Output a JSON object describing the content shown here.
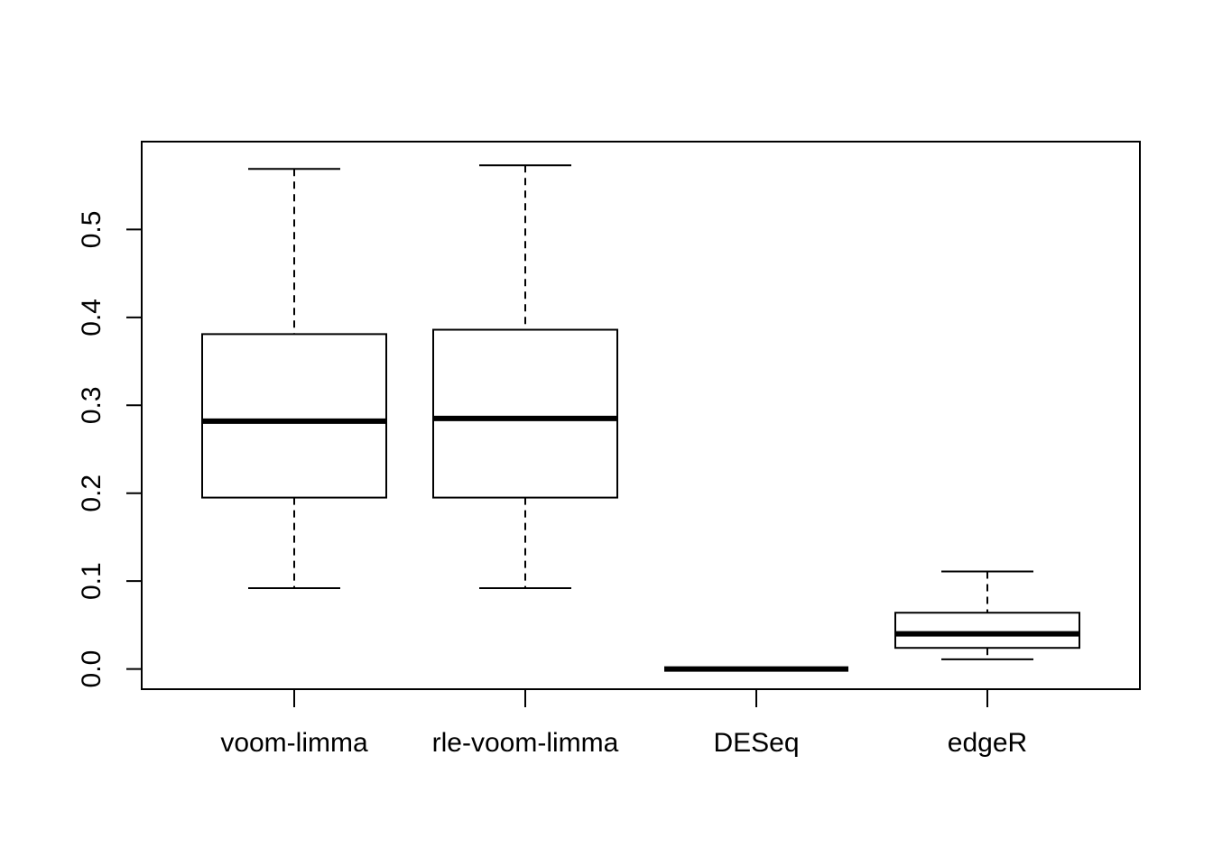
{
  "chart_data": {
    "type": "boxplot",
    "title": "",
    "xlabel": "",
    "ylabel": "",
    "ylim": [
      -0.023,
      0.6
    ],
    "yticks": [
      0.0,
      0.1,
      0.2,
      0.3,
      0.4,
      0.5
    ],
    "ytick_labels": [
      "0.0",
      "0.1",
      "0.2",
      "0.3",
      "0.4",
      "0.5"
    ],
    "categories": [
      "voom-limma",
      "rle-voom-limma",
      "DESeq",
      "edgeR"
    ],
    "boxes": [
      {
        "min": 0.092,
        "q1": 0.195,
        "median": 0.282,
        "q3": 0.381,
        "max": 0.569
      },
      {
        "min": 0.092,
        "q1": 0.195,
        "median": 0.285,
        "q3": 0.386,
        "max": 0.573
      },
      {
        "min": 0.0,
        "q1": 0.0,
        "median": 0.0,
        "q3": 0.0,
        "max": 0.0
      },
      {
        "min": 0.011,
        "q1": 0.024,
        "median": 0.04,
        "q3": 0.064,
        "max": 0.111
      }
    ],
    "grid": false,
    "legend": "none"
  }
}
